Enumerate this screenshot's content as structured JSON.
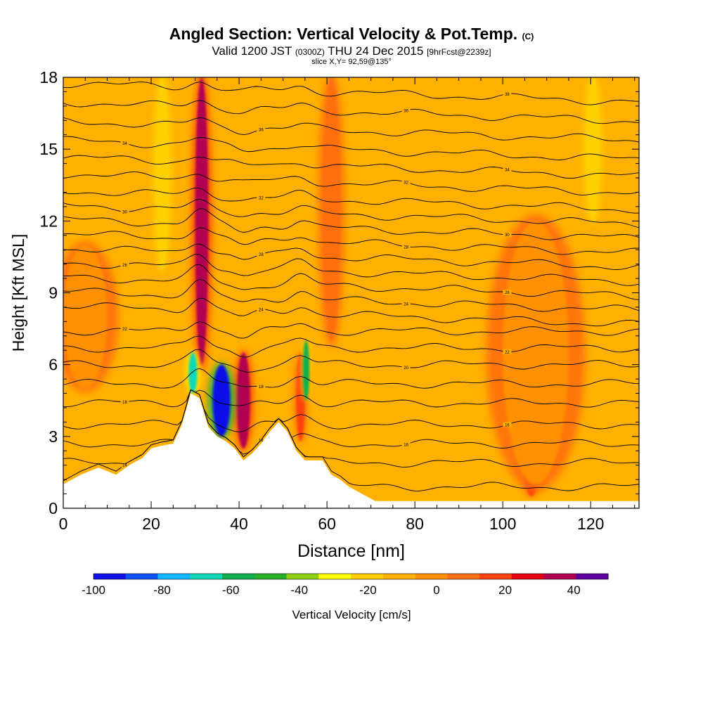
{
  "title": {
    "main": "Angled Section: Vertical Velocity & Pot.Temp.",
    "copyright": "(C)",
    "valid_prefix": "Valid 1200 JST",
    "valid_utc": "(0300Z)",
    "valid_date": "THU 24 Dec 2015",
    "forecast": "[9hrFcst@2239z]",
    "slice": "slice X,Y= 92,59@135°"
  },
  "chart_data": {
    "type": "heatmap",
    "title": "Angled Section: Vertical Velocity & Pot.Temp.",
    "xlabel": "Distance [nm]",
    "ylabel": "Height [Kft MSL]",
    "xlim": [
      0,
      131
    ],
    "ylim": [
      0,
      18
    ],
    "x_ticks": [
      0,
      20,
      40,
      60,
      80,
      100,
      120
    ],
    "y_ticks": [
      0,
      3,
      6,
      9,
      12,
      15,
      18
    ],
    "background_field": "Vertical Velocity [cm/s]",
    "background_level": "0 to 10",
    "terrain_profile": {
      "x": [
        0,
        4,
        8,
        12,
        15,
        18,
        20,
        22,
        25,
        27,
        29,
        31,
        33,
        35,
        37,
        39,
        41,
        43,
        45,
        47,
        49,
        51,
        53,
        55,
        57,
        59,
        61,
        63,
        65,
        67,
        69,
        71,
        73,
        131
      ],
      "height": [
        1.0,
        1.4,
        1.7,
        1.4,
        1.8,
        2.1,
        2.5,
        2.6,
        2.7,
        3.5,
        4.8,
        4.6,
        3.4,
        3.0,
        2.8,
        2.5,
        2.0,
        2.3,
        2.7,
        3.2,
        3.6,
        3.2,
        2.4,
        2.0,
        2.0,
        2.0,
        1.4,
        1.2,
        0.9,
        0.7,
        0.5,
        0.3,
        0.3,
        0.3
      ]
    },
    "velocity_regions": [
      {
        "name": "updraft-core-31nm",
        "x": [
          30,
          33
        ],
        "y": [
          6,
          18
        ],
        "value": 45
      },
      {
        "name": "updraft-41nm",
        "x": [
          39.5,
          42.5
        ],
        "y": [
          2.5,
          6.5
        ],
        "value": 45
      },
      {
        "name": "updraft-54nm",
        "x": [
          53,
          55
        ],
        "y": [
          2.8,
          6.5
        ],
        "value": 25
      },
      {
        "name": "updraft-61nm",
        "x": [
          59,
          63
        ],
        "y": [
          7,
          18
        ],
        "value": 15
      },
      {
        "name": "updraft-106nm",
        "x": [
          105,
          108
        ],
        "y": [
          0.5,
          2.5
        ],
        "value": 25
      },
      {
        "name": "updraft-band-107nm",
        "x": [
          100,
          115
        ],
        "y": [
          1,
          12
        ],
        "value": 5
      },
      {
        "name": "updraft-band-5nm",
        "x": [
          0,
          10
        ],
        "y": [
          5,
          11
        ],
        "value": 5
      },
      {
        "name": "downdraft-36nm",
        "x": [
          34,
          38
        ],
        "y": [
          3,
          6
        ],
        "value": -95
      },
      {
        "name": "downdraft-30nm",
        "x": [
          28.5,
          30.5
        ],
        "y": [
          4.8,
          6.5
        ],
        "value": -65
      },
      {
        "name": "downdraft-55nm",
        "x": [
          54.5,
          56
        ],
        "y": [
          4.5,
          7
        ],
        "value": -55
      },
      {
        "name": "sink-22nm",
        "x": [
          21,
          24
        ],
        "y": [
          10,
          18
        ],
        "value": -20
      },
      {
        "name": "sink-121nm",
        "x": [
          119,
          122
        ],
        "y": [
          12,
          18
        ],
        "value": -20
      }
    ],
    "theta_contours": [
      {
        "base_height": 0.9,
        "label": "14"
      },
      {
        "base_height": 1.9,
        "label": "14"
      },
      {
        "base_height": 2.7,
        "label": "16"
      },
      {
        "base_height": 3.5,
        "label": "16"
      },
      {
        "base_height": 4.4,
        "label": "18"
      },
      {
        "base_height": 5.2,
        "label": "18"
      },
      {
        "base_height": 6.0,
        "label": "20"
      },
      {
        "base_height": 6.7,
        "label": "22"
      },
      {
        "base_height": 7.4,
        "label": "22"
      },
      {
        "base_height": 8.1,
        "label": "24"
      },
      {
        "base_height": 8.7,
        "label": "24"
      },
      {
        "base_height": 9.3,
        "label": "26"
      },
      {
        "base_height": 9.9,
        "label": "26"
      },
      {
        "base_height": 10.5,
        "label": "28"
      },
      {
        "base_height": 11.1,
        "label": "28"
      },
      {
        "base_height": 11.7,
        "label": "30"
      },
      {
        "base_height": 12.3,
        "label": "30"
      },
      {
        "base_height": 12.9,
        "label": "32"
      },
      {
        "base_height": 13.6,
        "label": "32"
      },
      {
        "base_height": 14.3,
        "label": "34"
      },
      {
        "base_height": 15.0,
        "label": "34"
      },
      {
        "base_height": 15.8,
        "label": "36"
      },
      {
        "base_height": 16.6,
        "label": "36"
      },
      {
        "base_height": 17.4,
        "label": "38"
      }
    ],
    "colorbar": {
      "label": "Vertical Velocity [cm/s]",
      "bins": [
        -100,
        -90,
        -80,
        -70,
        -60,
        -50,
        -40,
        -30,
        -20,
        -10,
        0,
        10,
        20,
        30,
        40,
        50
      ],
      "colors": [
        "#1010e8",
        "#1050ff",
        "#10b8ff",
        "#10d8b8",
        "#10b050",
        "#28b028",
        "#90d010",
        "#ffff00",
        "#ffd000",
        "#ffb000",
        "#ff9000",
        "#ff7010",
        "#ff4010",
        "#e80010",
        "#b00050",
        "#6000a0"
      ],
      "tick_values": [
        -100,
        -80,
        -60,
        -40,
        -20,
        0,
        20,
        40
      ],
      "tick_labels": [
        "-100",
        "-80",
        "-60",
        "-40",
        "-20",
        "0",
        "20",
        "40"
      ]
    }
  },
  "colors": {
    "background_field": "#ffb000",
    "terrain": "#ffffff",
    "contour": "#000000"
  }
}
